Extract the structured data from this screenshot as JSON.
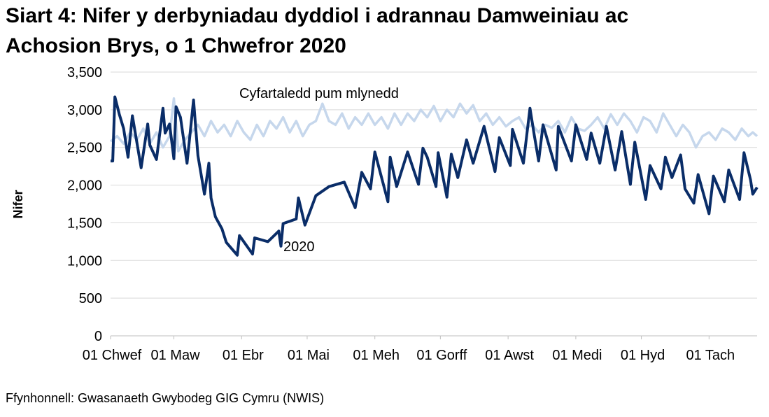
{
  "chart_data": {
    "type": "line",
    "title_line1": "Siart 4: Nifer y derbyniadau dyddiol i adrannau Damweiniau ac",
    "title_line2": "Achosion Brys, o 1 Chwefror 2020",
    "xlabel": "",
    "ylabel": "Nifer",
    "ylim": [
      0,
      3500
    ],
    "yticks": [
      0,
      500,
      1000,
      1500,
      2000,
      2500,
      3000,
      3500
    ],
    "ytick_labels": [
      "0",
      "500",
      "1,000",
      "1,500",
      "2,000",
      "2,500",
      "3,000",
      "3,500"
    ],
    "xlim": [
      "2020-02-01",
      "2020-11-23"
    ],
    "xticks": [
      "2020-02-01",
      "2020-03-01",
      "2020-04-01",
      "2020-05-01",
      "2020-06-01",
      "2020-07-01",
      "2020-08-01",
      "2020-09-01",
      "2020-10-01",
      "2020-11-01"
    ],
    "xtick_labels": [
      "01 Chwef",
      "01 Maw",
      "01 Ebr",
      "01 Mai",
      "01 Meh",
      "01 Gorff",
      "01 Awst",
      "01 Medi",
      "01 Hyd",
      "01 Tach"
    ],
    "grid": "horizontal",
    "legend": "none (direct labels)",
    "source": "Ffynhonnell: Gwasanaeth Gwybodeg GIG Cymru (NWIS)",
    "series": [
      {
        "name": "2020",
        "color": "#0a2d68",
        "points": [
          [
            "2020-02-01",
            2320
          ],
          [
            "2020-02-02",
            2320
          ],
          [
            "2020-02-03",
            3170
          ],
          [
            "2020-02-05",
            2940
          ],
          [
            "2020-02-07",
            2750
          ],
          [
            "2020-02-09",
            2370
          ],
          [
            "2020-02-11",
            2920
          ],
          [
            "2020-02-15",
            2230
          ],
          [
            "2020-02-18",
            2810
          ],
          [
            "2020-02-19",
            2530
          ],
          [
            "2020-02-22",
            2340
          ],
          [
            "2020-02-25",
            3020
          ],
          [
            "2020-02-26",
            2690
          ],
          [
            "2020-02-28",
            2810
          ],
          [
            "2020-03-01",
            2350
          ],
          [
            "2020-03-02",
            3040
          ],
          [
            "2020-03-04",
            2900
          ],
          [
            "2020-03-07",
            2290
          ],
          [
            "2020-03-10",
            3130
          ],
          [
            "2020-03-11",
            2760
          ],
          [
            "2020-03-12",
            2390
          ],
          [
            "2020-03-15",
            1880
          ],
          [
            "2020-03-17",
            2290
          ],
          [
            "2020-03-18",
            1830
          ],
          [
            "2020-03-20",
            1580
          ],
          [
            "2020-03-23",
            1420
          ],
          [
            "2020-03-25",
            1240
          ],
          [
            "2020-03-30",
            1070
          ],
          [
            "2020-03-31",
            1330
          ],
          [
            "2020-04-06",
            1085
          ],
          [
            "2020-04-07",
            1300
          ],
          [
            "2020-04-13",
            1250
          ],
          [
            "2020-04-18",
            1390
          ],
          [
            "2020-04-19",
            1190
          ],
          [
            "2020-04-20",
            1490
          ],
          [
            "2020-04-26",
            1550
          ],
          [
            "2020-04-27",
            1830
          ],
          [
            "2020-04-30",
            1470
          ],
          [
            "2020-05-05",
            1860
          ],
          [
            "2020-05-11",
            1980
          ],
          [
            "2020-05-18",
            2040
          ],
          [
            "2020-05-23",
            1700
          ],
          [
            "2020-05-26",
            2170
          ],
          [
            "2020-05-30",
            1950
          ],
          [
            "2020-06-01",
            2440
          ],
          [
            "2020-06-07",
            1780
          ],
          [
            "2020-06-08",
            2370
          ],
          [
            "2020-06-11",
            1980
          ],
          [
            "2020-06-16",
            2440
          ],
          [
            "2020-06-21",
            2010
          ],
          [
            "2020-06-23",
            2490
          ],
          [
            "2020-06-25",
            2370
          ],
          [
            "2020-06-29",
            1980
          ],
          [
            "2020-06-30",
            2430
          ],
          [
            "2020-07-04",
            1840
          ],
          [
            "2020-07-06",
            2410
          ],
          [
            "2020-07-09",
            2100
          ],
          [
            "2020-07-13",
            2600
          ],
          [
            "2020-07-16",
            2290
          ],
          [
            "2020-07-21",
            2780
          ],
          [
            "2020-07-26",
            2180
          ],
          [
            "2020-07-28",
            2630
          ],
          [
            "2020-08-02",
            2260
          ],
          [
            "2020-08-03",
            2740
          ],
          [
            "2020-08-08",
            2290
          ],
          [
            "2020-08-11",
            3020
          ],
          [
            "2020-08-13",
            2660
          ],
          [
            "2020-08-15",
            2320
          ],
          [
            "2020-08-17",
            2800
          ],
          [
            "2020-08-23",
            2200
          ],
          [
            "2020-08-24",
            2780
          ],
          [
            "2020-08-30",
            2320
          ],
          [
            "2020-09-01",
            2800
          ],
          [
            "2020-09-06",
            2340
          ],
          [
            "2020-09-08",
            2690
          ],
          [
            "2020-09-12",
            2290
          ],
          [
            "2020-09-15",
            2780
          ],
          [
            "2020-09-19",
            2200
          ],
          [
            "2020-09-22",
            2710
          ],
          [
            "2020-09-26",
            2010
          ],
          [
            "2020-09-28",
            2570
          ],
          [
            "2020-10-03",
            1810
          ],
          [
            "2020-10-05",
            2260
          ],
          [
            "2020-10-10",
            1950
          ],
          [
            "2020-10-12",
            2370
          ],
          [
            "2020-10-15",
            2100
          ],
          [
            "2020-10-19",
            2400
          ],
          [
            "2020-10-21",
            1950
          ],
          [
            "2020-10-25",
            1760
          ],
          [
            "2020-10-27",
            2140
          ],
          [
            "2020-11-01",
            1620
          ],
          [
            "2020-11-03",
            2120
          ],
          [
            "2020-11-08",
            1780
          ],
          [
            "2020-11-10",
            2200
          ],
          [
            "2020-11-15",
            1810
          ],
          [
            "2020-11-17",
            2430
          ],
          [
            "2020-11-20",
            2070
          ],
          [
            "2020-11-21",
            1880
          ],
          [
            "2020-11-23",
            1970
          ]
        ]
      },
      {
        "name": "Cyfartaledd pum mlynedd",
        "color": "#c6d7ec",
        "points": [
          [
            "2020-02-01",
            2580
          ],
          [
            "2020-02-04",
            2650
          ],
          [
            "2020-02-07",
            2550
          ],
          [
            "2020-02-10",
            2700
          ],
          [
            "2020-02-13",
            2600
          ],
          [
            "2020-02-16",
            2750
          ],
          [
            "2020-02-19",
            2550
          ],
          [
            "2020-02-22",
            2700
          ],
          [
            "2020-02-25",
            2500
          ],
          [
            "2020-02-28",
            2650
          ],
          [
            "2020-03-01",
            3150
          ],
          [
            "2020-03-03",
            2450
          ],
          [
            "2020-03-06",
            2600
          ],
          [
            "2020-03-09",
            2700
          ],
          [
            "2020-03-12",
            2800
          ],
          [
            "2020-03-15",
            2650
          ],
          [
            "2020-03-18",
            2850
          ],
          [
            "2020-03-21",
            2700
          ],
          [
            "2020-03-24",
            2800
          ],
          [
            "2020-03-27",
            2650
          ],
          [
            "2020-03-30",
            2850
          ],
          [
            "2020-04-02",
            2700
          ],
          [
            "2020-04-05",
            2600
          ],
          [
            "2020-04-08",
            2800
          ],
          [
            "2020-04-11",
            2650
          ],
          [
            "2020-04-14",
            2850
          ],
          [
            "2020-04-17",
            2750
          ],
          [
            "2020-04-20",
            2900
          ],
          [
            "2020-04-23",
            2700
          ],
          [
            "2020-04-26",
            2850
          ],
          [
            "2020-04-29",
            2650
          ],
          [
            "2020-05-02",
            2800
          ],
          [
            "2020-05-05",
            2850
          ],
          [
            "2020-05-08",
            3080
          ],
          [
            "2020-05-11",
            2850
          ],
          [
            "2020-05-14",
            2800
          ],
          [
            "2020-05-17",
            2950
          ],
          [
            "2020-05-20",
            2750
          ],
          [
            "2020-05-23",
            2900
          ],
          [
            "2020-05-26",
            2800
          ],
          [
            "2020-05-29",
            2950
          ],
          [
            "2020-06-01",
            2800
          ],
          [
            "2020-06-04",
            2900
          ],
          [
            "2020-06-07",
            2750
          ],
          [
            "2020-06-10",
            2950
          ],
          [
            "2020-06-13",
            2800
          ],
          [
            "2020-06-16",
            2950
          ],
          [
            "2020-06-19",
            2850
          ],
          [
            "2020-06-22",
            3000
          ],
          [
            "2020-06-25",
            2900
          ],
          [
            "2020-06-28",
            3050
          ],
          [
            "2020-07-01",
            2850
          ],
          [
            "2020-07-04",
            3000
          ],
          [
            "2020-07-07",
            2900
          ],
          [
            "2020-07-10",
            3080
          ],
          [
            "2020-07-13",
            2950
          ],
          [
            "2020-07-16",
            3060
          ],
          [
            "2020-07-19",
            2850
          ],
          [
            "2020-07-22",
            2950
          ],
          [
            "2020-07-25",
            2800
          ],
          [
            "2020-07-28",
            2900
          ],
          [
            "2020-07-31",
            2780
          ],
          [
            "2020-08-03",
            2850
          ],
          [
            "2020-08-06",
            2900
          ],
          [
            "2020-08-09",
            2750
          ],
          [
            "2020-08-12",
            2800
          ],
          [
            "2020-08-15",
            2700
          ],
          [
            "2020-08-18",
            2800
          ],
          [
            "2020-08-21",
            2760
          ],
          [
            "2020-08-24",
            2850
          ],
          [
            "2020-08-27",
            2700
          ],
          [
            "2020-08-30",
            2900
          ],
          [
            "2020-09-02",
            2750
          ],
          [
            "2020-09-05",
            2720
          ],
          [
            "2020-09-08",
            2800
          ],
          [
            "2020-09-11",
            2900
          ],
          [
            "2020-09-14",
            2750
          ],
          [
            "2020-09-17",
            2940
          ],
          [
            "2020-09-20",
            2800
          ],
          [
            "2020-09-23",
            2950
          ],
          [
            "2020-09-26",
            2850
          ],
          [
            "2020-09-29",
            2700
          ],
          [
            "2020-10-02",
            2900
          ],
          [
            "2020-10-05",
            2850
          ],
          [
            "2020-10-08",
            2700
          ],
          [
            "2020-10-11",
            2950
          ],
          [
            "2020-10-14",
            2800
          ],
          [
            "2020-10-17",
            2650
          ],
          [
            "2020-10-20",
            2800
          ],
          [
            "2020-10-23",
            2700
          ],
          [
            "2020-10-26",
            2500
          ],
          [
            "2020-10-29",
            2650
          ],
          [
            "2020-11-01",
            2700
          ],
          [
            "2020-11-04",
            2600
          ],
          [
            "2020-11-07",
            2750
          ],
          [
            "2020-11-10",
            2700
          ],
          [
            "2020-11-13",
            2600
          ],
          [
            "2020-11-16",
            2750
          ],
          [
            "2020-11-19",
            2650
          ],
          [
            "2020-11-21",
            2700
          ],
          [
            "2020-11-23",
            2650
          ]
        ]
      }
    ]
  }
}
